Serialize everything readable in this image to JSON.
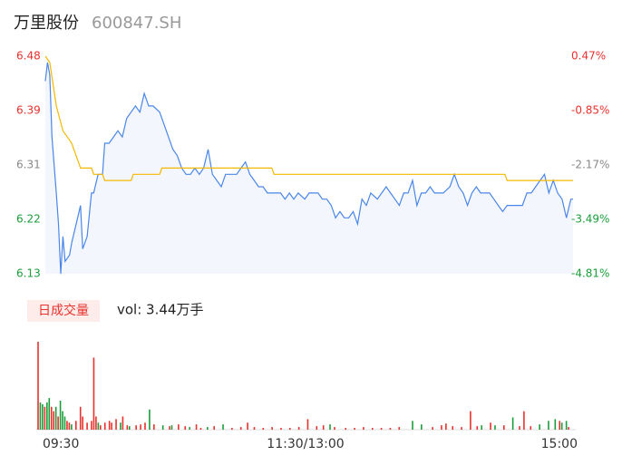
{
  "header": {
    "name": "万里股份",
    "code": "600847.SH"
  },
  "chart_data": [
    {
      "type": "line",
      "xlim": [
        0,
        240
      ],
      "ylim": [
        6.13,
        6.48
      ],
      "yticks": [
        6.48,
        {
          "value": 6.3925,
          "label": "6.39"
        },
        {
          "value": 6.305,
          "label": "6.31"
        },
        {
          "value": 6.2175,
          "label": "6.22"
        },
        6.13
      ],
      "ytick_colors": [
        "#e8312d",
        "#e8312d",
        "#888888",
        "#1a9d3a",
        "#1a9d3a"
      ],
      "y2lim": [
        -4.81,
        0.47
      ],
      "y2ticks": [
        {
          "value": 0.47,
          "label": "0.47%"
        },
        {
          "value": -0.85,
          "label": "-0.85%"
        },
        {
          "value": -2.17,
          "label": "-2.17%"
        },
        {
          "value": -3.49,
          "label": "-3.49%"
        },
        {
          "value": -4.81,
          "label": "-4.81%"
        }
      ],
      "y2tick_colors": [
        "#e8312d",
        "#e8312d",
        "#888888",
        "#1a9d3a",
        "#1a9d3a"
      ],
      "fill": "#f4f6fd",
      "series": [
        {
          "color": "#4a86e8",
          "x": [
            0,
            1,
            2,
            3,
            5,
            6,
            7,
            8,
            9,
            11,
            12,
            14,
            16,
            17,
            19,
            21,
            22,
            24,
            26,
            27,
            29,
            31,
            33,
            35,
            37,
            39,
            41,
            43,
            45,
            47,
            49,
            52,
            54,
            56,
            58,
            60,
            62,
            64,
            66,
            68,
            70,
            72,
            74,
            76,
            78,
            80,
            82,
            85,
            87,
            89,
            91,
            93,
            95,
            97,
            99,
            101,
            103,
            105,
            107,
            109,
            111,
            113,
            115,
            118,
            120,
            122,
            124,
            126,
            128,
            130,
            132,
            134,
            136,
            138,
            140,
            142,
            144,
            146,
            148,
            151,
            153,
            155,
            157,
            159,
            161,
            163,
            165,
            167,
            169,
            171,
            173,
            175,
            177,
            179,
            181,
            184,
            186,
            188,
            190,
            192,
            194,
            196,
            198,
            200,
            202,
            204,
            206,
            208,
            210,
            212,
            214,
            217,
            219,
            221,
            223,
            225,
            227,
            229,
            231,
            233,
            235,
            237,
            239,
            240
          ],
          "values": [
            6.44,
            6.47,
            6.45,
            6.35,
            6.26,
            6.21,
            6.13,
            6.19,
            6.15,
            6.16,
            6.18,
            6.21,
            6.24,
            6.17,
            6.19,
            6.26,
            6.26,
            6.29,
            6.29,
            6.34,
            6.34,
            6.35,
            6.36,
            6.35,
            6.38,
            6.39,
            6.4,
            6.39,
            6.42,
            6.4,
            6.4,
            6.39,
            6.37,
            6.35,
            6.33,
            6.32,
            6.3,
            6.29,
            6.29,
            6.3,
            6.29,
            6.3,
            6.33,
            6.29,
            6.28,
            6.27,
            6.29,
            6.29,
            6.29,
            6.3,
            6.31,
            6.29,
            6.28,
            6.27,
            6.27,
            6.26,
            6.26,
            6.26,
            6.26,
            6.25,
            6.26,
            6.25,
            6.26,
            6.25,
            6.26,
            6.26,
            6.26,
            6.25,
            6.25,
            6.24,
            6.22,
            6.23,
            6.22,
            6.22,
            6.23,
            6.21,
            6.25,
            6.24,
            6.26,
            6.25,
            6.26,
            6.27,
            6.26,
            6.25,
            6.24,
            6.26,
            6.26,
            6.28,
            6.24,
            6.26,
            6.26,
            6.27,
            6.26,
            6.26,
            6.26,
            6.27,
            6.29,
            6.27,
            6.26,
            6.24,
            6.26,
            6.27,
            6.26,
            6.26,
            6.26,
            6.25,
            6.24,
            6.23,
            6.24,
            6.24,
            6.24,
            6.24,
            6.26,
            6.26,
            6.27,
            6.28,
            6.29,
            6.26,
            6.28,
            6.26,
            6.25,
            6.22,
            6.25,
            6.25
          ]
        },
        {
          "color": "#f5b800",
          "x": [
            0,
            2,
            5,
            8,
            12,
            16,
            21,
            22,
            26,
            27,
            39,
            40,
            52,
            53,
            103,
            104,
            209,
            210,
            240
          ],
          "values": [
            6.48,
            6.47,
            6.4,
            6.36,
            6.34,
            6.3,
            6.3,
            6.29,
            6.29,
            6.28,
            6.28,
            6.29,
            6.29,
            6.3,
            6.3,
            6.29,
            6.29,
            6.28,
            6.28
          ]
        }
      ]
    },
    {
      "type": "bar",
      "label": "日成交量",
      "summary": "vol: 3.44万手",
      "xlim": [
        0,
        240
      ],
      "xticks": [
        {
          "value": 0,
          "label": "09:30"
        },
        {
          "value": 120,
          "label": "11:30/13:00"
        },
        {
          "value": 240,
          "label": "15:00"
        }
      ],
      "ylim": [
        0,
        1000
      ],
      "x": [
        0,
        1,
        2,
        3,
        4,
        5,
        6,
        7,
        8,
        9,
        10,
        11,
        12,
        13,
        14,
        15,
        17,
        19,
        20,
        22,
        24,
        25,
        26,
        27,
        28,
        30,
        32,
        33,
        35,
        37,
        38,
        40,
        41,
        44,
        46,
        48,
        50,
        52,
        56,
        59,
        60,
        63,
        66,
        68,
        71,
        73,
        76,
        79,
        83,
        87,
        91,
        94,
        97,
        101,
        105,
        109,
        113,
        117,
        121,
        125,
        128,
        131,
        133,
        138,
        142,
        146,
        150,
        154,
        158,
        162,
        168,
        172,
        177,
        181,
        183,
        186,
        190,
        194,
        197,
        199,
        203,
        205,
        209,
        213,
        216,
        218,
        221,
        225,
        229,
        232,
        234,
        235,
        237,
        238
      ],
      "values": [
        1000,
        310,
        290,
        260,
        310,
        360,
        260,
        210,
        260,
        150,
        330,
        210,
        150,
        100,
        80,
        60,
        100,
        260,
        150,
        80,
        100,
        820,
        150,
        80,
        50,
        80,
        100,
        80,
        120,
        80,
        150,
        50,
        40,
        50,
        60,
        80,
        230,
        60,
        50,
        40,
        50,
        60,
        40,
        30,
        60,
        20,
        30,
        40,
        60,
        20,
        30,
        80,
        30,
        20,
        30,
        20,
        20,
        30,
        120,
        40,
        50,
        60,
        30,
        20,
        20,
        30,
        20,
        20,
        20,
        30,
        100,
        60,
        30,
        50,
        70,
        40,
        30,
        210,
        40,
        50,
        80,
        50,
        50,
        140,
        40,
        210,
        40,
        60,
        100,
        120,
        100,
        80,
        100,
        30
      ],
      "colors": [
        "#e8312d",
        "#1a9d3a",
        "#1a9d3a",
        "#e8312d",
        "#1a9d3a",
        "#1a9d3a",
        "#e8312d",
        "#e8312d",
        "#1a9d3a",
        "#e8312d",
        "#1a9d3a",
        "#1a9d3a",
        "#1a9d3a",
        "#e8312d",
        "#e8312d",
        "#1a9d3a",
        "#e8312d",
        "#e8312d",
        "#e8312d",
        "#e8312d",
        "#e8312d",
        "#e8312d",
        "#e8312d",
        "#1a9d3a",
        "#e8312d",
        "#e8312d",
        "#e8312d",
        "#e8312d",
        "#e8312d",
        "#1a9d3a",
        "#e8312d",
        "#e8312d",
        "#1a9d3a",
        "#e8312d",
        "#e8312d",
        "#e8312d",
        "#1a9d3a",
        "#e8312d",
        "#1a9d3a",
        "#e8312d",
        "#1a9d3a",
        "#e8312d",
        "#e8312d",
        "#1a9d3a",
        "#e8312d",
        "#e8312d",
        "#1a9d3a",
        "#e8312d",
        "#1a9d3a",
        "#e8312d",
        "#e8312d",
        "#e8312d",
        "#e8312d",
        "#e8312d",
        "#e8312d",
        "#e8312d",
        "#e8312d",
        "#e8312d",
        "#e8312d",
        "#e8312d",
        "#e8312d",
        "#1a9d3a",
        "#e8312d",
        "#e8312d",
        "#e8312d",
        "#e8312d",
        "#e8312d",
        "#e8312d",
        "#e8312d",
        "#e8312d",
        "#1a9d3a",
        "#1a9d3a",
        "#e8312d",
        "#e8312d",
        "#e8312d",
        "#e8312d",
        "#e8312d",
        "#e8312d",
        "#e8312d",
        "#1a9d3a",
        "#e8312d",
        "#1a9d3a",
        "#e8312d",
        "#1a9d3a",
        "#e8312d",
        "#e8312d",
        "#e8312d",
        "#1a9d3a",
        "#1a9d3a",
        "#1a9d3a",
        "#e8312d",
        "#1a9d3a",
        "#1a9d3a",
        "#e8312d"
      ]
    }
  ]
}
